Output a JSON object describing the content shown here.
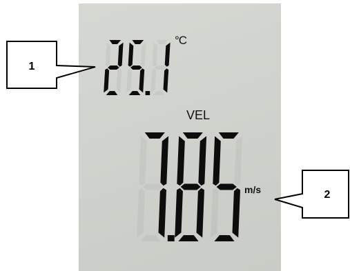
{
  "display": {
    "temperature": "25.1",
    "temperature_unit": "°C",
    "mode_label": "VEL",
    "velocity": "7.85",
    "velocity_unit": "m/s"
  },
  "callouts": [
    {
      "label": "1",
      "target": "temperature-reading"
    },
    {
      "label": "2",
      "target": "velocity-unit"
    }
  ],
  "colors": {
    "lcd_background": "#d2d4cf",
    "segment": "#0d0d0d"
  }
}
